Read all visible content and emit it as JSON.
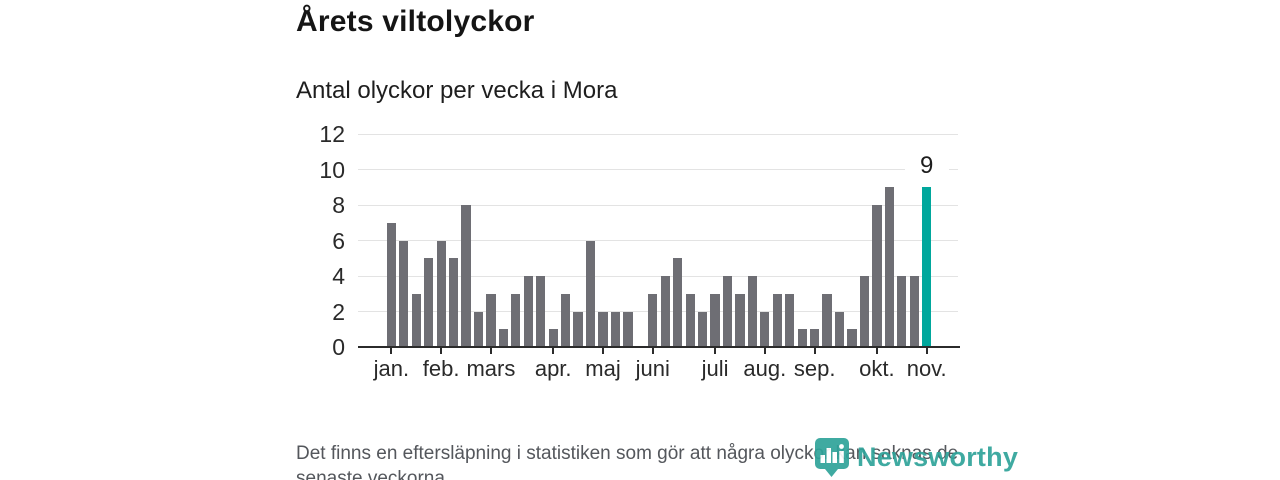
{
  "header": {
    "title": "Årets viltolyckor",
    "subtitle": "Antal olyckor per vecka i Mora"
  },
  "chart_data": {
    "type": "bar",
    "x_unit": "week",
    "title": "Årets viltolyckor",
    "subtitle": "Antal olyckor per vecka i Mora",
    "values": [
      7,
      6,
      3,
      5,
      6,
      5,
      8,
      2,
      3,
      1,
      3,
      4,
      4,
      1,
      3,
      2,
      6,
      2,
      2,
      2,
      0,
      3,
      4,
      5,
      3,
      2,
      3,
      4,
      3,
      4,
      2,
      3,
      3,
      1,
      1,
      3,
      2,
      1,
      4,
      8,
      9,
      4,
      4,
      9
    ],
    "highlight_index": 43,
    "annotation": {
      "text": "9",
      "index": 43
    },
    "y_ticks": [
      0,
      2,
      4,
      6,
      8,
      10,
      12
    ],
    "ylim": [
      0,
      12
    ],
    "grid": true,
    "month_ticks": [
      {
        "label": "jan.",
        "week": 1
      },
      {
        "label": "feb.",
        "week": 5
      },
      {
        "label": "mars",
        "week": 9
      },
      {
        "label": "apr.",
        "week": 14
      },
      {
        "label": "maj",
        "week": 18
      },
      {
        "label": "juni",
        "week": 22
      },
      {
        "label": "juli",
        "week": 27
      },
      {
        "label": "aug.",
        "week": 31
      },
      {
        "label": "sep.",
        "week": 35
      },
      {
        "label": "okt.",
        "week": 40
      },
      {
        "label": "nov.",
        "week": 44
      }
    ],
    "colors": {
      "bar": "#6e6e74",
      "highlight": "#00a79c",
      "grid": "#e3e3e3",
      "axis": "#2b2b2b"
    }
  },
  "footer": {
    "line1": "Det finns en eftersläpning i statistiken som gör att några olyckor kan saknas de",
    "line2": "senaste veckorna."
  },
  "logo": {
    "text": "Newsworthy",
    "color": "#2fa39a"
  }
}
